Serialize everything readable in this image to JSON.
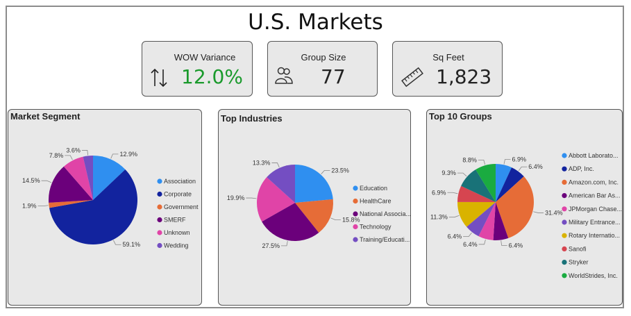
{
  "page_title": "U.S. Markets",
  "kpis": {
    "wow": {
      "label": "WOW Variance",
      "value": "12.0%",
      "color": "#1a9a2c"
    },
    "group": {
      "label": "Group Size",
      "value": "77"
    },
    "sqft": {
      "label": "Sq Feet",
      "value": "1,823"
    }
  },
  "chart_data": [
    {
      "type": "pie",
      "title": "Market Segment",
      "slices": [
        {
          "label": "Association",
          "value": 12.9,
          "display": "12.9%",
          "color": "#2f8ff0"
        },
        {
          "label": "Corporate",
          "value": 59.1,
          "display": "59.1%",
          "color": "#12239e"
        },
        {
          "label": "Government",
          "value": 1.9,
          "display": "1.9%",
          "color": "#e66c37"
        },
        {
          "label": "SMERF",
          "value": 14.5,
          "display": "14.5%",
          "color": "#6b007b"
        },
        {
          "label": "Unknown",
          "value": 7.8,
          "display": "7.8%",
          "color": "#e044a7"
        },
        {
          "label": "Wedding",
          "value": 3.6,
          "display": "3.6%",
          "color": "#744ec2"
        }
      ],
      "legend_position": "right"
    },
    {
      "type": "pie",
      "title": "Top Industries",
      "slices": [
        {
          "label": "Education",
          "value": 23.5,
          "display": "23.5%",
          "color": "#2f8ff0"
        },
        {
          "label": "HealthCare",
          "value": 15.8,
          "display": "15.8%",
          "color": "#e66c37"
        },
        {
          "label": "National Associa...",
          "value": 27.5,
          "display": "27.5%",
          "color": "#6b007b"
        },
        {
          "label": "Technology",
          "value": 19.9,
          "display": "19.9%",
          "color": "#e044a7"
        },
        {
          "label": "Training/Educati...",
          "value": 13.3,
          "display": "13.3%",
          "color": "#744ec2"
        }
      ],
      "legend_position": "right"
    },
    {
      "type": "pie",
      "title": "Top 10 Groups",
      "slices": [
        {
          "label": "Abbott Laborato...",
          "value": 6.9,
          "display": "6.9%",
          "color": "#2f8ff0"
        },
        {
          "label": "ADP, Inc.",
          "value": 6.4,
          "display": "6.4%",
          "color": "#12239e"
        },
        {
          "label": "Amazon.com, Inc.",
          "value": 31.4,
          "display": "31.4%",
          "color": "#e66c37"
        },
        {
          "label": "American Bar As...",
          "value": 6.4,
          "display": "6.4%",
          "color": "#6b007b"
        },
        {
          "label": "JPMorgan Chase...",
          "value": 6.4,
          "display": "6.4%",
          "color": "#e044a7"
        },
        {
          "label": "Military Entrance...",
          "value": 6.4,
          "display": "6.4%",
          "color": "#744ec2"
        },
        {
          "label": "Rotary Internatio...",
          "value": 11.3,
          "display": "11.3%",
          "color": "#d9b300"
        },
        {
          "label": "Sanofi",
          "value": 6.9,
          "display": "6.9%",
          "color": "#d64550"
        },
        {
          "label": "Stryker",
          "value": 9.3,
          "display": "9.3%",
          "color": "#197278"
        },
        {
          "label": "WorldStrides, Inc.",
          "value": 8.8,
          "display": "8.8%",
          "color": "#1aab40"
        }
      ],
      "legend_position": "right"
    }
  ]
}
